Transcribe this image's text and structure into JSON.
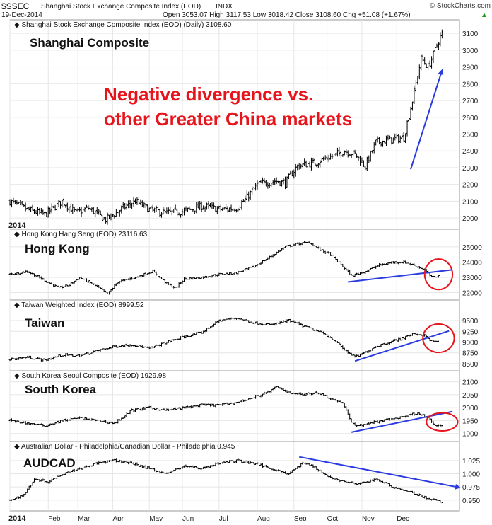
{
  "header": {
    "symbol": "$SSEC",
    "description": "Shanghai Stock Exchange Composite Index (EOD)",
    "exchange": "INDX",
    "date": "19-Dec-2014",
    "ohlc": "Open 3053.07  High 3117.53  Low 3018.42  Close 3108.60  Chg +51.08 (+1.67%)",
    "change_arrow": "▲",
    "brand": "© StockCharts.com"
  },
  "annotation": {
    "line1": "Negative divergence vs.",
    "line2": "other Greater China markets",
    "color": "#e8141b"
  },
  "colors": {
    "price": "#000000",
    "trend": "#2a3be0",
    "circle": "#e8141b",
    "grid": "#e6e6e6",
    "axis_text": "#222222"
  },
  "x_axis": {
    "labels": [
      "2014",
      "Feb",
      "Mar",
      "Apr",
      "May",
      "Jun",
      "Jul",
      "Aug",
      "Sep",
      "Oct",
      "Nov",
      "Dec"
    ],
    "label_positions_day": [
      0,
      22,
      39,
      59,
      80,
      99,
      120,
      142,
      163,
      182,
      202,
      222
    ]
  },
  "chart_data": [
    {
      "type": "ohlc",
      "id": "shanghai",
      "legend": "Shanghai Stock Exchange Composite Index (EOD) (Daily) 3108.60",
      "label": "Shanghai Composite",
      "ylim": [
        1950,
        3130
      ],
      "yticks": [
        2000,
        2100,
        2200,
        2300,
        2400,
        2500,
        2600,
        2700,
        2800,
        2900,
        3000,
        3100
      ],
      "last_value": 3108.6,
      "key_points": [
        [
          0,
          2100
        ],
        [
          10,
          2050
        ],
        [
          20,
          2020
        ],
        [
          30,
          2100
        ],
        [
          38,
          2030
        ],
        [
          45,
          2060
        ],
        [
          55,
          1990
        ],
        [
          65,
          2060
        ],
        [
          72,
          2100
        ],
        [
          80,
          2050
        ],
        [
          90,
          2030
        ],
        [
          100,
          2040
        ],
        [
          110,
          2070
        ],
        [
          122,
          2050
        ],
        [
          130,
          2060
        ],
        [
          135,
          2110
        ],
        [
          142,
          2200
        ],
        [
          152,
          2220
        ],
        [
          158,
          2210
        ],
        [
          165,
          2310
        ],
        [
          175,
          2330
        ],
        [
          188,
          2380
        ],
        [
          192,
          2400
        ],
        [
          198,
          2380
        ],
        [
          204,
          2310
        ],
        [
          210,
          2450
        ],
        [
          220,
          2470
        ],
        [
          226,
          2480
        ],
        [
          231,
          2700
        ],
        [
          236,
          2950
        ],
        [
          240,
          2900
        ],
        [
          244,
          3000
        ],
        [
          248,
          3108.6
        ]
      ],
      "trendlines": [
        {
          "from": [
            230,
            2290
          ],
          "to": [
            248,
            2880
          ],
          "arrow": true
        }
      ],
      "circles": []
    },
    {
      "type": "ohlc",
      "id": "hongkong",
      "legend": "Hong Kong Hang Seng (EOD) 23116.63",
      "label": "Hong Kong",
      "ylim": [
        21700,
        25600
      ],
      "yticks": [
        22000,
        23000,
        24000,
        25000
      ],
      "last_value": 23116.63,
      "key_points": [
        [
          0,
          23200
        ],
        [
          10,
          23400
        ],
        [
          20,
          22800
        ],
        [
          28,
          22300
        ],
        [
          34,
          22500
        ],
        [
          40,
          23000
        ],
        [
          50,
          22400
        ],
        [
          56,
          21900
        ],
        [
          62,
          22700
        ],
        [
          72,
          23000
        ],
        [
          82,
          23400
        ],
        [
          90,
          22600
        ],
        [
          95,
          22300
        ],
        [
          100,
          22900
        ],
        [
          110,
          23000
        ],
        [
          120,
          23200
        ],
        [
          130,
          23300
        ],
        [
          140,
          23700
        ],
        [
          150,
          24400
        ],
        [
          158,
          25000
        ],
        [
          165,
          25200
        ],
        [
          172,
          25300
        ],
        [
          178,
          24800
        ],
        [
          184,
          24500
        ],
        [
          192,
          23600
        ],
        [
          196,
          23100
        ],
        [
          204,
          23400
        ],
        [
          212,
          23800
        ],
        [
          220,
          24000
        ],
        [
          226,
          24000
        ],
        [
          232,
          23800
        ],
        [
          238,
          23500
        ],
        [
          242,
          23000
        ],
        [
          246,
          23116.63
        ]
      ],
      "trendlines": [
        {
          "from": [
            194,
            22700
          ],
          "to": [
            254,
            23500
          ],
          "arrow": false
        }
      ],
      "circles": [
        {
          "cx": 246,
          "cy": 23200,
          "rx": 8,
          "ry": 1000
        }
      ]
    },
    {
      "type": "ohlc",
      "id": "taiwan",
      "legend": "Taiwan Weighted Index (EOD) 8999.52",
      "label": "Taiwan",
      "ylim": [
        8400,
        9780
      ],
      "yticks": [
        8500,
        8750,
        9000,
        9250,
        9500
      ],
      "last_value": 8999.52,
      "key_points": [
        [
          0,
          8600
        ],
        [
          10,
          8650
        ],
        [
          20,
          8580
        ],
        [
          30,
          8700
        ],
        [
          40,
          8680
        ],
        [
          50,
          8800
        ],
        [
          60,
          8900
        ],
        [
          70,
          8940
        ],
        [
          80,
          8850
        ],
        [
          90,
          9000
        ],
        [
          100,
          9120
        ],
        [
          110,
          9220
        ],
        [
          120,
          9500
        ],
        [
          130,
          9560
        ],
        [
          140,
          9450
        ],
        [
          150,
          9400
        ],
        [
          160,
          9500
        ],
        [
          170,
          9350
        ],
        [
          180,
          9200
        ],
        [
          186,
          9050
        ],
        [
          192,
          8820
        ],
        [
          198,
          8650
        ],
        [
          202,
          8720
        ],
        [
          210,
          8900
        ],
        [
          218,
          9000
        ],
        [
          226,
          9100
        ],
        [
          232,
          9200
        ],
        [
          238,
          9150
        ],
        [
          242,
          9020
        ],
        [
          246,
          8999.52
        ]
      ],
      "trendlines": [
        {
          "from": [
            198,
            8560
          ],
          "to": [
            252,
            9260
          ],
          "arrow": false
        }
      ],
      "circles": [
        {
          "cx": 246,
          "cy": 9090,
          "rx": 9,
          "ry": 330
        }
      ]
    },
    {
      "type": "ohlc",
      "id": "southkorea",
      "legend": "South Korea Seoul Composite (EOD) 1929.98",
      "label": "South Korea",
      "ylim": [
        1880,
        2110
      ],
      "yticks": [
        1900,
        1950,
        2000,
        2050,
        2100
      ],
      "last_value": 1929.98,
      "key_points": [
        [
          0,
          1950
        ],
        [
          10,
          1940
        ],
        [
          20,
          1930
        ],
        [
          30,
          1950
        ],
        [
          40,
          1960
        ],
        [
          50,
          1950
        ],
        [
          60,
          1940
        ],
        [
          70,
          1990
        ],
        [
          80,
          2000
        ],
        [
          90,
          1990
        ],
        [
          100,
          2000
        ],
        [
          110,
          2010
        ],
        [
          120,
          2010
        ],
        [
          130,
          2020
        ],
        [
          140,
          2040
        ],
        [
          148,
          2060
        ],
        [
          153,
          2080
        ],
        [
          160,
          2060
        ],
        [
          168,
          2050
        ],
        [
          176,
          2060
        ],
        [
          186,
          2030
        ],
        [
          191,
          2020
        ],
        [
          196,
          1940
        ],
        [
          200,
          1930
        ],
        [
          206,
          1940
        ],
        [
          214,
          1950
        ],
        [
          222,
          1960
        ],
        [
          228,
          1970
        ],
        [
          234,
          1980
        ],
        [
          240,
          1960
        ],
        [
          244,
          1930
        ],
        [
          248,
          1929.98
        ]
      ],
      "trendlines": [
        {
          "from": [
            196,
            1905
          ],
          "to": [
            254,
            1985
          ],
          "arrow": false
        }
      ],
      "circles": [
        {
          "cx": 248,
          "cy": 1945,
          "rx": 9,
          "ry": 35
        }
      ]
    },
    {
      "type": "ohlc",
      "id": "audcad",
      "legend": "Australian Dollar - Philadelphia/Canadian Dollar - Philadelphia 0.945",
      "label": "AUDCAD",
      "ylim": [
        0.935,
        1.045
      ],
      "yticks": [
        0.95,
        0.975,
        1.0,
        1.025
      ],
      "last_value": 0.945,
      "key_points": [
        [
          0,
          0.95
        ],
        [
          8,
          0.96
        ],
        [
          14,
          0.99
        ],
        [
          22,
          0.985
        ],
        [
          30,
          1.0
        ],
        [
          40,
          1.01
        ],
        [
          50,
          1.02
        ],
        [
          60,
          1.025
        ],
        [
          70,
          1.02
        ],
        [
          80,
          1.01
        ],
        [
          90,
          1.0
        ],
        [
          100,
          1.015
        ],
        [
          110,
          1.01
        ],
        [
          120,
          1.02
        ],
        [
          130,
          1.025
        ],
        [
          140,
          1.02
        ],
        [
          150,
          1.01
        ],
        [
          160,
          1.0
        ],
        [
          168,
          1.02
        ],
        [
          174,
          1.015
        ],
        [
          180,
          1.0
        ],
        [
          186,
          0.99
        ],
        [
          192,
          0.985
        ],
        [
          200,
          0.98
        ],
        [
          210,
          0.99
        ],
        [
          220,
          0.975
        ],
        [
          230,
          0.965
        ],
        [
          238,
          0.955
        ],
        [
          244,
          0.95
        ],
        [
          248,
          0.945
        ]
      ],
      "trendlines": [
        {
          "from": [
            166,
            1.032
          ],
          "to": [
            258,
            0.974
          ],
          "arrow": true
        }
      ],
      "circles": []
    }
  ]
}
